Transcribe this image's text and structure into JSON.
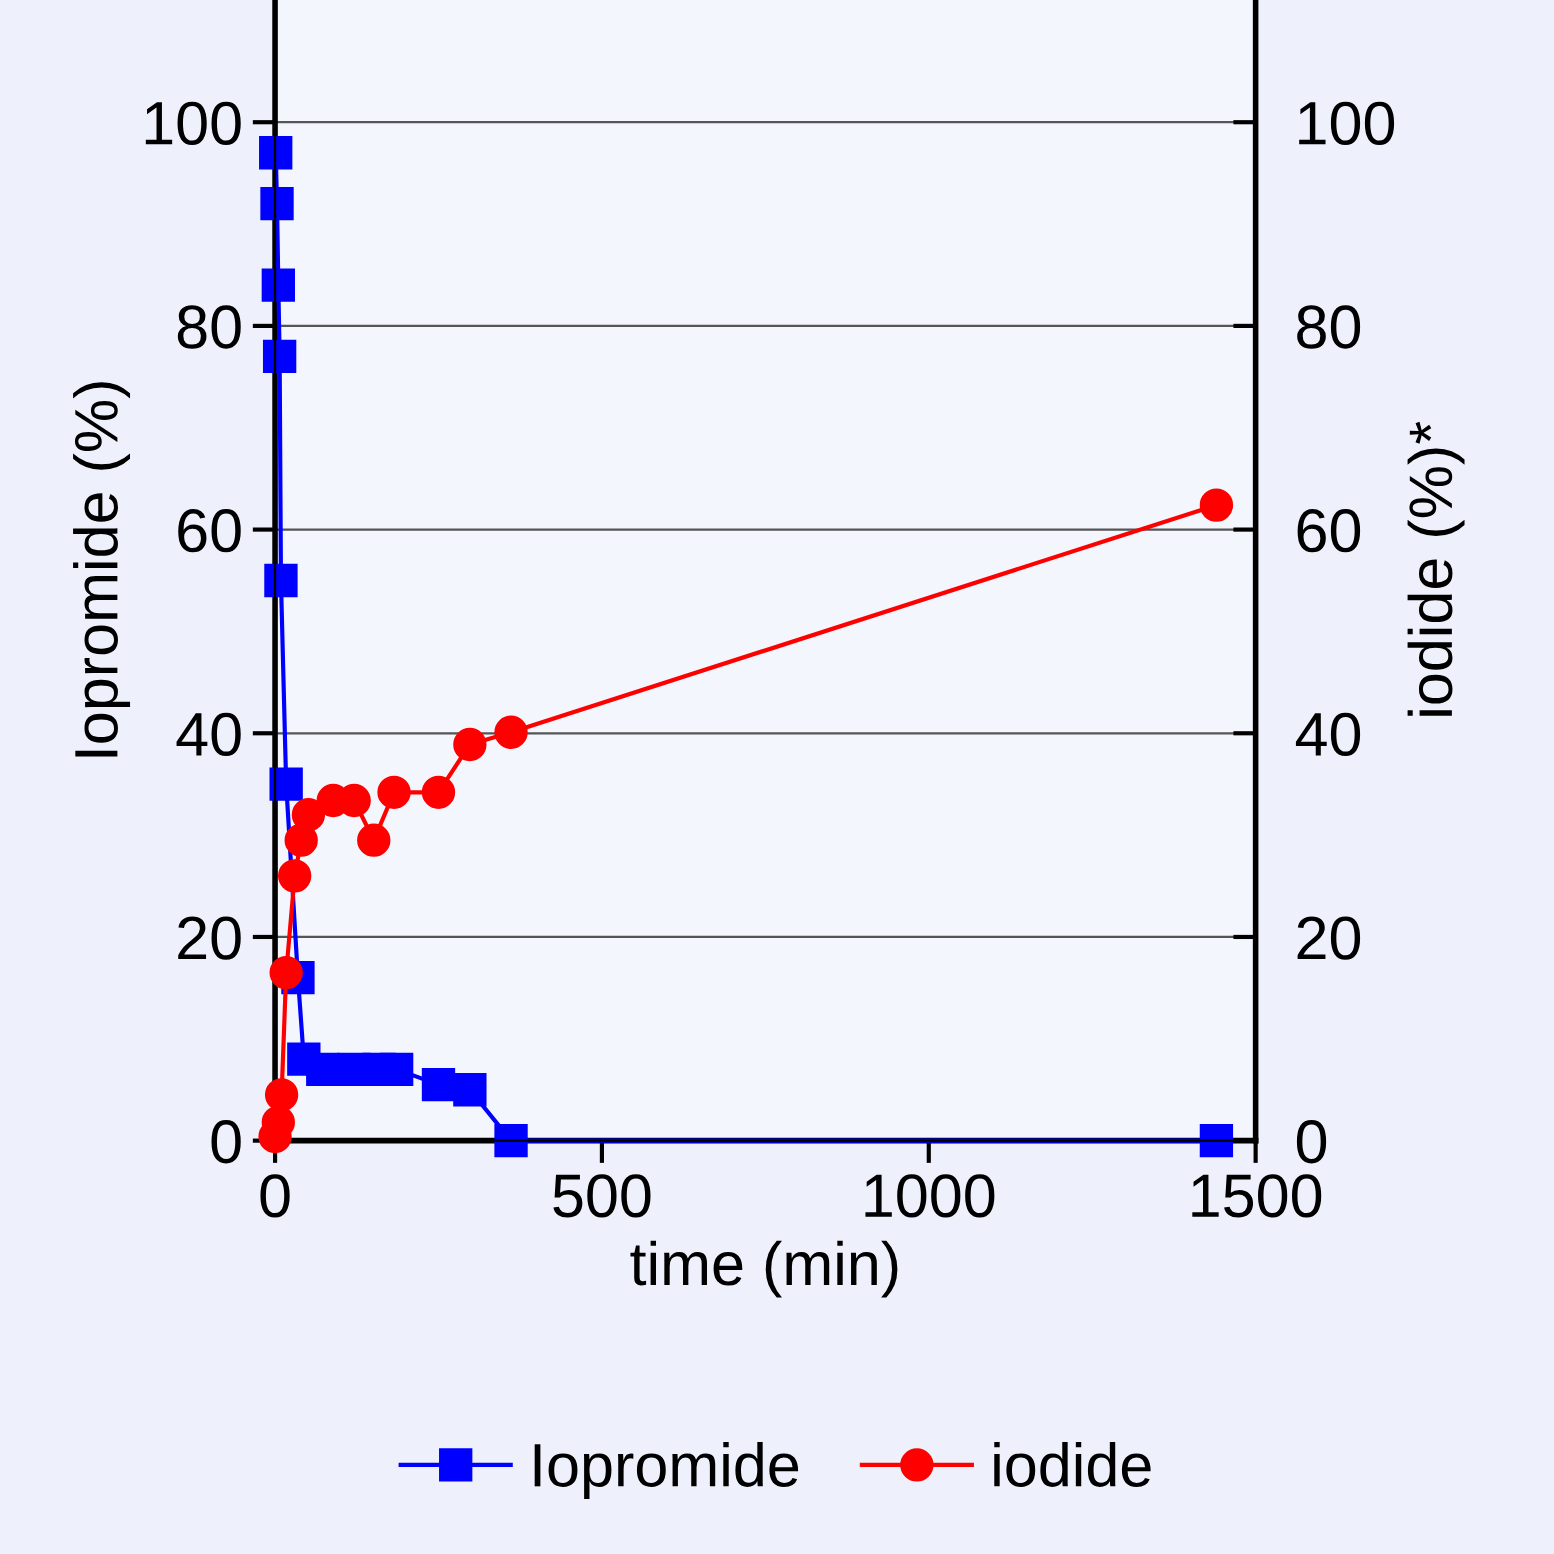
{
  "chart_data": {
    "type": "line",
    "xlabel": "time (min)",
    "ylabel": "Iopromide (%)",
    "y2label": "iodide (%)*",
    "xlim": [
      0,
      1500
    ],
    "xticks": [
      0,
      500,
      1000,
      1500
    ],
    "ylim": [
      0,
      112
    ],
    "yticks": [
      0,
      20,
      40,
      60,
      80,
      100
    ],
    "y2lim": [
      0,
      112
    ],
    "y2ticks": [
      0,
      20,
      40,
      60,
      80,
      100
    ],
    "grid": "y",
    "legend": "bottom",
    "series": [
      {
        "name": "Iopromide",
        "color": "#0000ff",
        "marker": "square",
        "x": [
          1,
          3,
          5,
          7,
          9,
          17,
          35,
          44,
          73,
          121,
          159,
          186,
          250,
          298,
          361,
          1440
        ],
        "values": [
          97,
          92,
          84,
          77,
          55,
          35,
          16,
          8,
          7,
          7,
          7,
          7,
          5.5,
          5,
          0,
          0
        ]
      },
      {
        "name": "iodide",
        "color": "#ff0000",
        "marker": "circle",
        "axis": "y2",
        "x": [
          0,
          5,
          10,
          17,
          30,
          40,
          51,
          89,
          121,
          151,
          182,
          250,
          298,
          361,
          1440
        ],
        "values": [
          0.4,
          1.8,
          4.5,
          16.5,
          26,
          29.5,
          32,
          33.4,
          33.4,
          29.5,
          34.2,
          34.2,
          38.9,
          40.1,
          62.4
        ]
      }
    ]
  }
}
